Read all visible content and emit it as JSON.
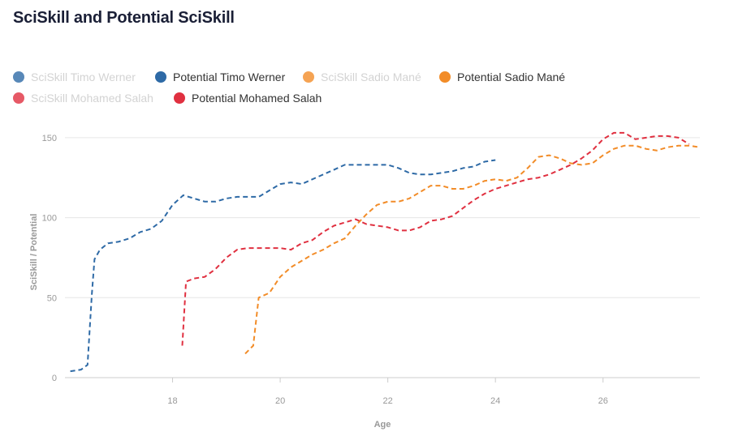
{
  "page": {
    "title": "SciSkill and Potential SciSkill"
  },
  "chart_data": {
    "type": "line",
    "title": "SciSkill and Potential SciSkill",
    "xlabel": "Age",
    "ylabel": "SciSkill / Potential",
    "xlim": [
      16,
      27.8
    ],
    "ylim": [
      0,
      155
    ],
    "x_ticks": [
      18,
      20,
      22,
      24,
      26
    ],
    "y_ticks": [
      0,
      50,
      100,
      150
    ],
    "grid": true,
    "legend_position": "top",
    "series": [
      {
        "name": "SciSkill Timo Werner",
        "color": "#2e6aa6",
        "visible": false,
        "points": []
      },
      {
        "name": "Potential Timo Werner",
        "color": "#2e6aa6",
        "visible": true,
        "dash": true,
        "points": [
          [
            16.1,
            4
          ],
          [
            16.3,
            5
          ],
          [
            16.42,
            8
          ],
          [
            16.5,
            52
          ],
          [
            16.55,
            74
          ],
          [
            16.65,
            80
          ],
          [
            16.8,
            84
          ],
          [
            17.0,
            85
          ],
          [
            17.2,
            87
          ],
          [
            17.4,
            91
          ],
          [
            17.6,
            93
          ],
          [
            17.8,
            98
          ],
          [
            18.0,
            108
          ],
          [
            18.2,
            114
          ],
          [
            18.4,
            112
          ],
          [
            18.6,
            110
          ],
          [
            18.8,
            110
          ],
          [
            19.0,
            112
          ],
          [
            19.2,
            113
          ],
          [
            19.4,
            113
          ],
          [
            19.6,
            113
          ],
          [
            19.8,
            117
          ],
          [
            20.0,
            121
          ],
          [
            20.2,
            122
          ],
          [
            20.4,
            121
          ],
          [
            20.6,
            124
          ],
          [
            20.8,
            127
          ],
          [
            21.0,
            130
          ],
          [
            21.2,
            133
          ],
          [
            21.4,
            133
          ],
          [
            21.6,
            133
          ],
          [
            21.8,
            133
          ],
          [
            22.0,
            133
          ],
          [
            22.2,
            131
          ],
          [
            22.4,
            128
          ],
          [
            22.6,
            127
          ],
          [
            22.8,
            127
          ],
          [
            23.0,
            128
          ],
          [
            23.2,
            129
          ],
          [
            23.4,
            131
          ],
          [
            23.6,
            132
          ],
          [
            23.8,
            135
          ],
          [
            24.0,
            136
          ]
        ]
      },
      {
        "name": "SciSkill Sadio Mané",
        "color": "#f28c28",
        "visible": false,
        "points": []
      },
      {
        "name": "Potential Sadio Mané",
        "color": "#f28c28",
        "visible": true,
        "dash": true,
        "points": [
          [
            19.35,
            15
          ],
          [
            19.5,
            20
          ],
          [
            19.6,
            50
          ],
          [
            19.8,
            53
          ],
          [
            20.0,
            63
          ],
          [
            20.2,
            69
          ],
          [
            20.4,
            73
          ],
          [
            20.6,
            77
          ],
          [
            20.8,
            80
          ],
          [
            21.0,
            84
          ],
          [
            21.2,
            87
          ],
          [
            21.4,
            95
          ],
          [
            21.6,
            102
          ],
          [
            21.8,
            108
          ],
          [
            22.0,
            110
          ],
          [
            22.2,
            110
          ],
          [
            22.4,
            112
          ],
          [
            22.6,
            116
          ],
          [
            22.8,
            120
          ],
          [
            23.0,
            120
          ],
          [
            23.2,
            118
          ],
          [
            23.4,
            118
          ],
          [
            23.6,
            120
          ],
          [
            23.8,
            123
          ],
          [
            24.0,
            124
          ],
          [
            24.2,
            123
          ],
          [
            24.4,
            125
          ],
          [
            24.6,
            131
          ],
          [
            24.8,
            138
          ],
          [
            25.0,
            139
          ],
          [
            25.2,
            137
          ],
          [
            25.4,
            134
          ],
          [
            25.6,
            133
          ],
          [
            25.8,
            134
          ],
          [
            26.0,
            139
          ],
          [
            26.2,
            143
          ],
          [
            26.4,
            145
          ],
          [
            26.6,
            145
          ],
          [
            26.8,
            143
          ],
          [
            27.0,
            142
          ],
          [
            27.2,
            144
          ],
          [
            27.4,
            145
          ],
          [
            27.6,
            145
          ],
          [
            27.8,
            144
          ]
        ]
      },
      {
        "name": "SciSkill Mohamed Salah",
        "color": "#e03040",
        "visible": false,
        "points": []
      },
      {
        "name": "Potential Mohamed Salah",
        "color": "#e03040",
        "visible": true,
        "dash": true,
        "points": [
          [
            18.18,
            20
          ],
          [
            18.25,
            60
          ],
          [
            18.4,
            62
          ],
          [
            18.6,
            63
          ],
          [
            18.8,
            68
          ],
          [
            19.0,
            75
          ],
          [
            19.2,
            80
          ],
          [
            19.4,
            81
          ],
          [
            19.6,
            81
          ],
          [
            19.8,
            81
          ],
          [
            20.0,
            81
          ],
          [
            20.2,
            80
          ],
          [
            20.4,
            84
          ],
          [
            20.6,
            86
          ],
          [
            20.8,
            91
          ],
          [
            21.0,
            95
          ],
          [
            21.2,
            97
          ],
          [
            21.4,
            99
          ],
          [
            21.6,
            96
          ],
          [
            21.8,
            95
          ],
          [
            22.0,
            94
          ],
          [
            22.2,
            92
          ],
          [
            22.4,
            92
          ],
          [
            22.6,
            94
          ],
          [
            22.8,
            98
          ],
          [
            23.0,
            99
          ],
          [
            23.2,
            101
          ],
          [
            23.4,
            106
          ],
          [
            23.6,
            111
          ],
          [
            23.8,
            115
          ],
          [
            24.0,
            118
          ],
          [
            24.2,
            120
          ],
          [
            24.4,
            122
          ],
          [
            24.6,
            124
          ],
          [
            24.8,
            125
          ],
          [
            25.0,
            127
          ],
          [
            25.2,
            130
          ],
          [
            25.4,
            133
          ],
          [
            25.6,
            137
          ],
          [
            25.8,
            142
          ],
          [
            26.0,
            149
          ],
          [
            26.2,
            153
          ],
          [
            26.4,
            153
          ],
          [
            26.6,
            149
          ],
          [
            26.8,
            150
          ],
          [
            27.0,
            151
          ],
          [
            27.2,
            151
          ],
          [
            27.4,
            150
          ],
          [
            27.6,
            146
          ]
        ]
      }
    ]
  }
}
